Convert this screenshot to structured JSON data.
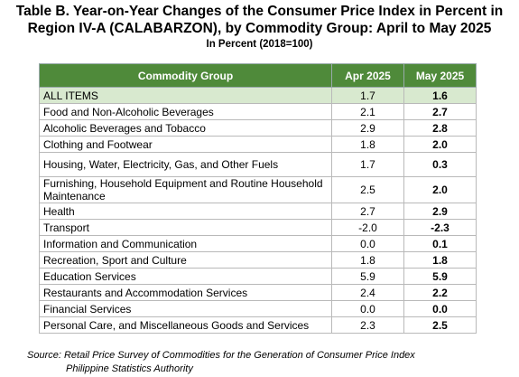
{
  "header": {
    "title_lines": [
      "Table B. Year-on-Year Changes of the Consumer Price Index in Percent in",
      "Region IV-A (CALABARZON), by Commodity Group: April to May 2025"
    ],
    "subtitle": "In Percent (2018=100)"
  },
  "table": {
    "columns": [
      "Commodity Group",
      "Apr 2025",
      "May 2025"
    ],
    "rows": [
      [
        "ALL ITEMS",
        "1.7",
        "1.6"
      ],
      [
        "Food and Non-Alcoholic Beverages",
        "2.1",
        "2.7"
      ],
      [
        "Alcoholic Beverages and Tobacco",
        "2.9",
        "2.8"
      ],
      [
        "Clothing and Footwear",
        "1.8",
        "2.0"
      ],
      [
        "Housing, Water, Electricity, Gas, and Other Fuels",
        "1.7",
        "0.3"
      ],
      [
        "Furnishing, Household Equipment and Routine Household Maintenance",
        "2.5",
        "2.0"
      ],
      [
        "Health",
        "2.7",
        "2.9"
      ],
      [
        "Transport",
        "-2.0",
        "-2.3"
      ],
      [
        "Information and Communication",
        "0.0",
        "0.1"
      ],
      [
        "Recreation, Sport and Culture",
        "1.8",
        "1.8"
      ],
      [
        "Education Services",
        "5.9",
        "5.9"
      ],
      [
        "Restaurants and Accommodation Services",
        "2.4",
        "2.2"
      ],
      [
        "Financial Services",
        "0.0",
        "0.0"
      ],
      [
        "Personal Care, and Miscellaneous Goods and Services",
        "2.3",
        "2.5"
      ]
    ]
  },
  "source": {
    "lines": [
      "Source: Retail Price Survey of Commodities for the Generation of Consumer Price Index",
      "Philippine Statistics Authority"
    ]
  }
}
